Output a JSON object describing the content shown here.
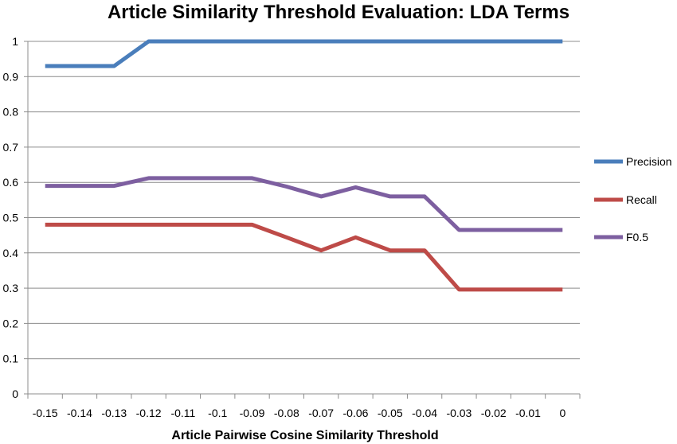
{
  "chart_data": {
    "type": "line",
    "title": "Article Similarity Threshold Evaluation: LDA Terms",
    "xlabel": "Article Pairwise Cosine Similarity Threshold",
    "ylabel": "",
    "categories": [
      "-0.15",
      "-0.14",
      "-0.13",
      "-0.12",
      "-0.11",
      "-0.1",
      "-0.09",
      "-0.08",
      "-0.07",
      "-0.06",
      "-0.05",
      "-0.04",
      "-0.03",
      "-0.02",
      "-0.01",
      "0"
    ],
    "ylim": [
      0,
      1
    ],
    "yticks": [
      "0",
      "0.1",
      "0.2",
      "0.3",
      "0.4",
      "0.5",
      "0.6",
      "0.7",
      "0.8",
      "0.9",
      "1"
    ],
    "grid": true,
    "legend_position": "right",
    "series": [
      {
        "name": "Precision",
        "color": "#4a7ebb",
        "values": [
          0.93,
          0.93,
          0.93,
          1.0,
          1.0,
          1.0,
          1.0,
          1.0,
          1.0,
          1.0,
          1.0,
          1.0,
          1.0,
          1.0,
          1.0,
          1.0
        ]
      },
      {
        "name": "Recall",
        "color": "#be4b48",
        "values": [
          0.48,
          0.48,
          0.48,
          0.48,
          0.48,
          0.48,
          0.48,
          0.444,
          0.407,
          0.444,
          0.407,
          0.407,
          0.296,
          0.296,
          0.296,
          0.296
        ]
      },
      {
        "name": "F0.5",
        "color": "#7d5fa0",
        "values": [
          0.59,
          0.59,
          0.59,
          0.612,
          0.612,
          0.612,
          0.612,
          0.588,
          0.56,
          0.586,
          0.56,
          0.56,
          0.465,
          0.465,
          0.465,
          0.465
        ]
      }
    ]
  }
}
